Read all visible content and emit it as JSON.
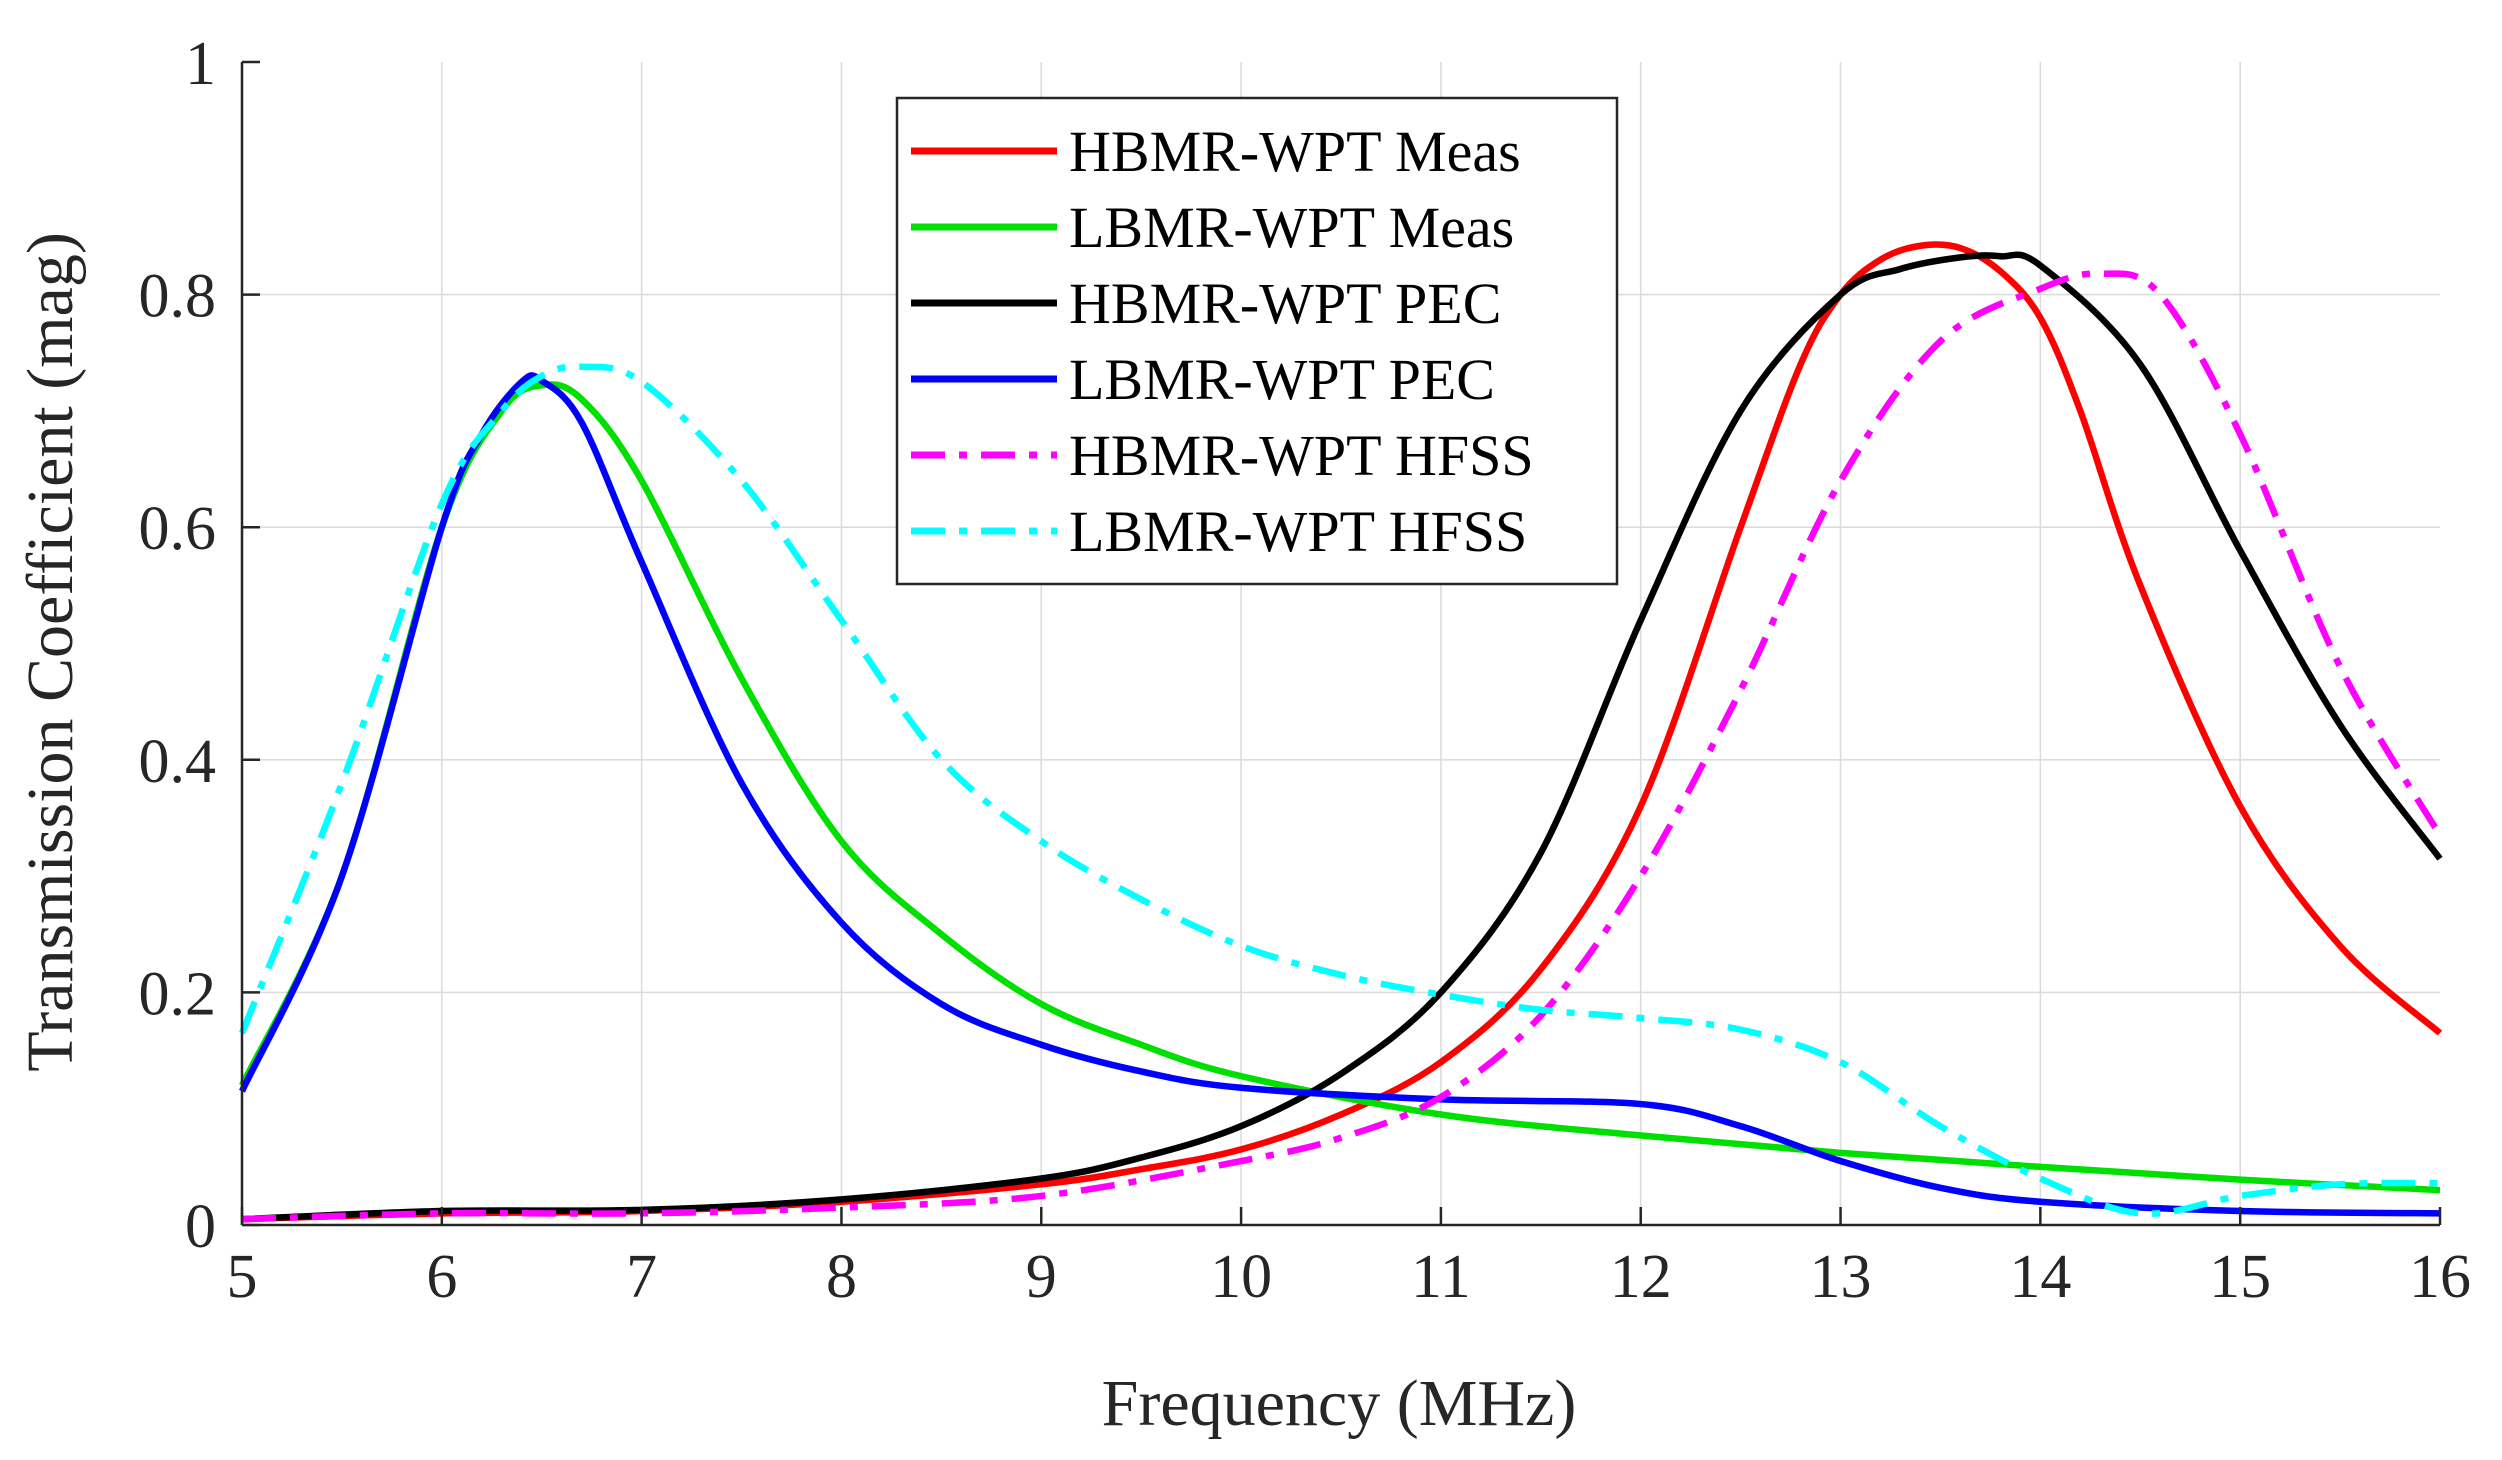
{
  "chart_data": {
    "type": "line",
    "title": "",
    "xlabel": "Frequency (MHz)",
    "ylabel": "Transmission Coefficient (mag)",
    "xlim": [
      5,
      16
    ],
    "ylim": [
      0,
      1
    ],
    "grid": true,
    "xticks": [
      5,
      6,
      7,
      8,
      9,
      10,
      11,
      12,
      13,
      14,
      15,
      16
    ],
    "xtick_labels": [
      "5",
      "6",
      "7",
      "8",
      "9",
      "10",
      "11",
      "12",
      "13",
      "14",
      "15",
      "16"
    ],
    "yticks": [
      0,
      0.2,
      0.4,
      0.6,
      0.8,
      1
    ],
    "ytick_labels": [
      "0",
      "0.2",
      "0.4",
      "0.6",
      "0.8",
      "1"
    ],
    "legend_position": "top-center",
    "series": [
      {
        "name": "HBMR-WPT Meas",
        "color": "#ff0000",
        "dash": "solid",
        "x": [
          5,
          6,
          7,
          8,
          9,
          9.5,
          10,
          10.5,
          11,
          11.5,
          12,
          12.5,
          12.8,
          13,
          13.2,
          13.4,
          13.6,
          13.8,
          14,
          14.2,
          14.5,
          15,
          15.5,
          16
        ],
        "y": [
          0.005,
          0.01,
          0.012,
          0.02,
          0.035,
          0.048,
          0.065,
          0.095,
          0.14,
          0.22,
          0.36,
          0.6,
          0.74,
          0.8,
          0.83,
          0.842,
          0.84,
          0.82,
          0.78,
          0.7,
          0.55,
          0.36,
          0.24,
          0.165
        ]
      },
      {
        "name": "LBMR-WPT Meas",
        "color": "#00e000",
        "dash": "solid",
        "x": [
          5,
          5.5,
          6,
          6.3,
          6.5,
          6.7,
          7,
          7.5,
          8,
          8.5,
          9,
          9.5,
          10,
          11,
          12,
          13,
          14,
          15,
          16
        ],
        "y": [
          0.12,
          0.3,
          0.6,
          0.7,
          0.722,
          0.71,
          0.64,
          0.47,
          0.33,
          0.25,
          0.19,
          0.155,
          0.128,
          0.095,
          0.077,
          0.062,
          0.05,
          0.039,
          0.03
        ]
      },
      {
        "name": "HBMR-WPT PEC",
        "color": "#000000",
        "dash": "solid",
        "x": [
          5,
          6,
          7,
          8,
          9,
          9.5,
          10,
          10.5,
          11,
          11.5,
          12,
          12.5,
          13,
          13.3,
          13.6,
          13.8,
          14,
          14.5,
          15,
          15.5,
          16
        ],
        "y": [
          0.005,
          0.012,
          0.013,
          0.022,
          0.04,
          0.058,
          0.085,
          0.13,
          0.2,
          0.32,
          0.52,
          0.7,
          0.8,
          0.822,
          0.832,
          0.833,
          0.825,
          0.74,
          0.58,
          0.43,
          0.315
        ]
      },
      {
        "name": "LBMR-WPT PEC",
        "color": "#0000ff",
        "dash": "solid",
        "x": [
          5,
          5.5,
          6,
          6.2,
          6.4,
          6.5,
          6.7,
          7,
          7.5,
          8,
          8.5,
          9,
          9.5,
          10,
          11,
          12,
          12.5,
          13,
          13.5,
          14,
          15,
          16
        ],
        "y": [
          0.115,
          0.3,
          0.6,
          0.68,
          0.725,
          0.726,
          0.69,
          0.57,
          0.38,
          0.26,
          0.19,
          0.155,
          0.132,
          0.118,
          0.108,
          0.104,
          0.085,
          0.055,
          0.032,
          0.02,
          0.012,
          0.01
        ]
      },
      {
        "name": "HBMR-WPT HFSS",
        "color": "#ff00ff",
        "dash": "dashdot",
        "x": [
          5,
          6,
          7,
          8,
          9,
          10,
          10.5,
          11,
          11.5,
          12,
          12.5,
          13,
          13.5,
          14,
          14.3,
          14.6,
          15,
          15.5,
          16
        ],
        "y": [
          0.005,
          0.01,
          0.01,
          0.015,
          0.025,
          0.055,
          0.075,
          0.11,
          0.18,
          0.3,
          0.46,
          0.64,
          0.76,
          0.805,
          0.818,
          0.8,
          0.68,
          0.48,
          0.335
        ]
      },
      {
        "name": "LBMR-WPT HFSS",
        "color": "#00ffff",
        "dash": "dashdot",
        "x": [
          5,
          5.5,
          6,
          6.3,
          6.5,
          6.7,
          7,
          7.5,
          8,
          8.5,
          9,
          9.5,
          10,
          10.5,
          11,
          11.5,
          12,
          12.5,
          13,
          13.5,
          14,
          14.5,
          15,
          15.5,
          16
        ],
        "y": [
          0.165,
          0.38,
          0.62,
          0.7,
          0.73,
          0.738,
          0.725,
          0.64,
          0.52,
          0.4,
          0.33,
          0.28,
          0.24,
          0.215,
          0.198,
          0.185,
          0.178,
          0.168,
          0.14,
          0.085,
          0.04,
          0.01,
          0.025,
          0.035,
          0.036
        ]
      }
    ]
  }
}
